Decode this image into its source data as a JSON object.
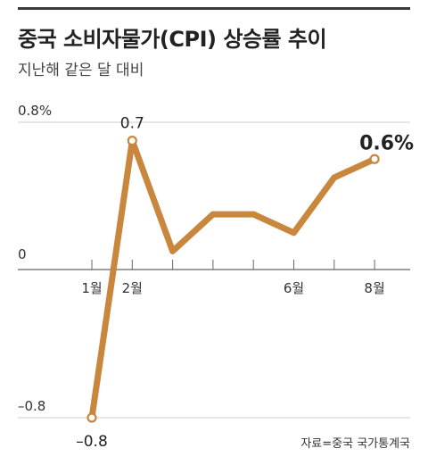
{
  "header": {
    "title": "중국 소비자물가(CPI) 상승률 추이",
    "subtitle": "지난해 같은 달 대비"
  },
  "source": "자료=중국 국가통계국",
  "colors": {
    "line": "#c8873d",
    "grid": "#cccccc",
    "axis": "#666666",
    "accent": "#3a3a3a"
  },
  "chart_data": {
    "type": "line",
    "title": "중국 소비자물가(CPI) 상승률 추이",
    "subtitle": "지난해 같은 달 대비",
    "x": [
      1,
      2,
      3,
      4,
      5,
      6,
      7,
      8
    ],
    "series": [
      {
        "values": [
          -0.8,
          0.7,
          0.1,
          0.3,
          0.3,
          0.2,
          0.5,
          0.6
        ]
      }
    ],
    "xtick_labels": [
      {
        "x": 1,
        "label": "1월"
      },
      {
        "x": 2,
        "label": "2월"
      },
      {
        "x": 6,
        "label": "6월"
      },
      {
        "x": 8,
        "label": "8월"
      }
    ],
    "ytick_labels": [
      {
        "y": 0.8,
        "label": "0.8%"
      },
      {
        "y": 0,
        "label": "0"
      },
      {
        "y": -0.8,
        "label": "–0.8"
      }
    ],
    "data_labels": [
      {
        "x": 1,
        "label": "–0.8",
        "bold": false
      },
      {
        "x": 2,
        "label": "0.7",
        "bold": false
      },
      {
        "x": 8,
        "label": "0.6%",
        "bold": true
      }
    ],
    "ylim": [
      -0.8,
      0.8
    ],
    "grid": true
  }
}
